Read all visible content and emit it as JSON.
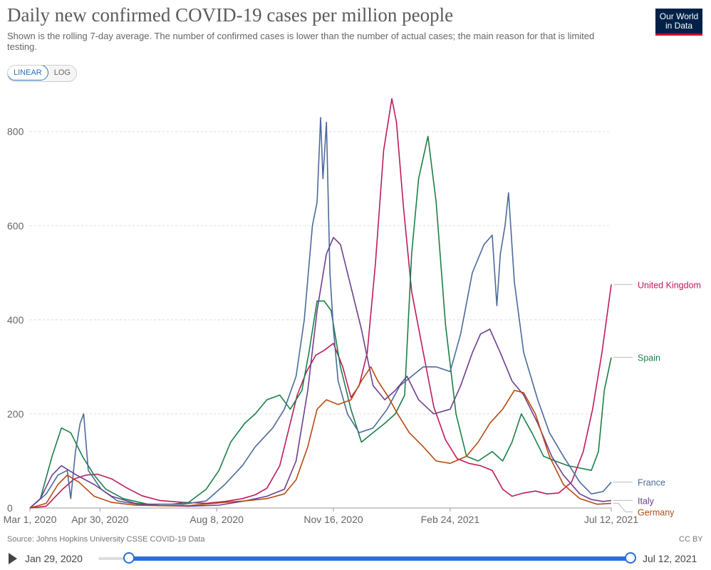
{
  "header": {
    "title": "Daily new confirmed COVID-19 cases per million people",
    "subtitle": "Shown is the rolling 7-day average. The number of confirmed cases is lower than the number of actual cases; the main reason for that is limited testing.",
    "logo_line1": "Our World",
    "logo_line2": "in Data"
  },
  "scale_toggle": {
    "linear": "LINEAR",
    "log": "LOG",
    "selected": "LINEAR"
  },
  "footer": {
    "source": "Source: Johns Hopkins University CSSE COVID-19 Data",
    "license": "CC BY"
  },
  "timeline": {
    "start_label": "Jan 29, 2020",
    "end_label": "Jul 12, 2021"
  },
  "chart_data": {
    "type": "line",
    "title": "Daily new confirmed COVID-19 cases per million people",
    "xlabel": "",
    "ylabel": "",
    "x_range": [
      "2020-03-01",
      "2021-07-12"
    ],
    "ylim": [
      0,
      880
    ],
    "y_ticks": [
      0,
      200,
      400,
      600,
      800
    ],
    "x_ticks": [
      {
        "date": "2020-03-01",
        "label": "Mar 1, 2020"
      },
      {
        "date": "2020-04-30",
        "label": "Apr 30, 2020"
      },
      {
        "date": "2020-08-08",
        "label": "Aug 8, 2020"
      },
      {
        "date": "2020-11-16",
        "label": "Nov 16, 2020"
      },
      {
        "date": "2021-02-24",
        "label": "Feb 24, 2021"
      },
      {
        "date": "2021-07-12",
        "label": "Jul 12, 2021"
      }
    ],
    "grid": true,
    "legend_position": "right (labels at line ends)",
    "series": [
      {
        "name": "United Kingdom",
        "color": "#be1a5c",
        "x": [
          "2020-03-01",
          "2020-03-15",
          "2020-03-29",
          "2020-04-08",
          "2020-04-18",
          "2020-04-28",
          "2020-05-10",
          "2020-05-22",
          "2020-06-05",
          "2020-06-20",
          "2020-07-10",
          "2020-07-30",
          "2020-08-15",
          "2020-08-30",
          "2020-09-10",
          "2020-09-20",
          "2020-10-01",
          "2020-10-08",
          "2020-10-16",
          "2020-10-24",
          "2020-11-01",
          "2020-11-08",
          "2020-11-16",
          "2020-11-24",
          "2020-12-01",
          "2020-12-08",
          "2020-12-15",
          "2020-12-22",
          "2020-12-29",
          "2021-01-05",
          "2021-01-09",
          "2021-01-15",
          "2021-01-22",
          "2021-02-01",
          "2021-02-10",
          "2021-02-20",
          "2021-03-02",
          "2021-03-12",
          "2021-03-22",
          "2021-04-01",
          "2021-04-10",
          "2021-04-18",
          "2021-04-28",
          "2021-05-08",
          "2021-05-18",
          "2021-05-28",
          "2021-06-08",
          "2021-06-18",
          "2021-06-26",
          "2021-07-04",
          "2021-07-12"
        ],
        "values": [
          0,
          4,
          40,
          62,
          70,
          72,
          62,
          44,
          26,
          16,
          12,
          10,
          14,
          20,
          28,
          42,
          90,
          160,
          240,
          290,
          325,
          335,
          350,
          300,
          235,
          260,
          330,
          520,
          760,
          870,
          820,
          640,
          460,
          330,
          215,
          145,
          105,
          95,
          90,
          80,
          40,
          25,
          32,
          36,
          30,
          32,
          55,
          120,
          210,
          330,
          475
        ]
      },
      {
        "name": "Spain",
        "color": "#1a8047",
        "x": [
          "2020-03-01",
          "2020-03-10",
          "2020-03-20",
          "2020-03-28",
          "2020-04-05",
          "2020-04-15",
          "2020-04-25",
          "2020-05-05",
          "2020-05-20",
          "2020-06-10",
          "2020-06-30",
          "2020-07-15",
          "2020-07-30",
          "2020-08-10",
          "2020-08-20",
          "2020-09-01",
          "2020-09-10",
          "2020-09-20",
          "2020-10-01",
          "2020-10-10",
          "2020-10-20",
          "2020-10-26",
          "2020-11-02",
          "2020-11-08",
          "2020-11-14",
          "2020-11-22",
          "2020-12-01",
          "2020-12-10",
          "2020-12-20",
          "2020-12-30",
          "2021-01-08",
          "2021-01-16",
          "2021-01-22",
          "2021-01-28",
          "2021-02-05",
          "2021-02-12",
          "2021-02-20",
          "2021-03-01",
          "2021-03-10",
          "2021-03-20",
          "2021-04-01",
          "2021-04-10",
          "2021-04-18",
          "2021-04-26",
          "2021-05-05",
          "2021-05-15",
          "2021-05-25",
          "2021-06-05",
          "2021-06-15",
          "2021-06-25",
          "2021-07-01",
          "2021-07-06",
          "2021-07-12"
        ],
        "values": [
          0,
          20,
          110,
          170,
          160,
          110,
          70,
          40,
          20,
          8,
          8,
          12,
          40,
          80,
          140,
          180,
          200,
          230,
          240,
          210,
          250,
          330,
          440,
          440,
          420,
          300,
          210,
          140,
          160,
          180,
          200,
          240,
          540,
          700,
          790,
          650,
          390,
          200,
          110,
          100,
          120,
          100,
          140,
          200,
          160,
          110,
          100,
          90,
          85,
          80,
          120,
          250,
          320
        ]
      },
      {
        "name": "France",
        "color": "#4c6a9c",
        "x": [
          "2020-03-01",
          "2020-03-15",
          "2020-03-25",
          "2020-04-02",
          "2020-04-05",
          "2020-04-09",
          "2020-04-13",
          "2020-04-16",
          "2020-04-20",
          "2020-05-01",
          "2020-05-15",
          "2020-06-01",
          "2020-06-20",
          "2020-07-10",
          "2020-07-30",
          "2020-08-15",
          "2020-08-30",
          "2020-09-10",
          "2020-09-25",
          "2020-10-05",
          "2020-10-15",
          "2020-10-22",
          "2020-10-29",
          "2020-11-02",
          "2020-11-05",
          "2020-11-07",
          "2020-11-10",
          "2020-11-13",
          "2020-11-16",
          "2020-11-20",
          "2020-11-28",
          "2020-12-08",
          "2020-12-20",
          "2021-01-01",
          "2021-01-12",
          "2021-01-22",
          "2021-02-01",
          "2021-02-12",
          "2021-02-24",
          "2021-03-05",
          "2021-03-15",
          "2021-03-25",
          "2021-04-01",
          "2021-04-05",
          "2021-04-08",
          "2021-04-12",
          "2021-04-15",
          "2021-04-20",
          "2021-04-28",
          "2021-05-10",
          "2021-05-20",
          "2021-06-01",
          "2021-06-15",
          "2021-06-25",
          "2021-07-05",
          "2021-07-12"
        ],
        "values": [
          0,
          30,
          70,
          80,
          20,
          120,
          180,
          200,
          80,
          40,
          15,
          8,
          8,
          8,
          15,
          50,
          90,
          130,
          170,
          210,
          280,
          400,
          600,
          650,
          830,
          700,
          820,
          500,
          380,
          270,
          200,
          160,
          170,
          210,
          260,
          280,
          300,
          300,
          290,
          370,
          500,
          560,
          580,
          430,
          540,
          600,
          670,
          480,
          330,
          230,
          160,
          110,
          55,
          30,
          35,
          55
        ]
      },
      {
        "name": "Italy",
        "color": "#6d3e91",
        "x": [
          "2020-03-01",
          "2020-03-10",
          "2020-03-20",
          "2020-03-28",
          "2020-04-10",
          "2020-04-25",
          "2020-05-10",
          "2020-05-30",
          "2020-06-20",
          "2020-07-15",
          "2020-08-10",
          "2020-09-01",
          "2020-09-20",
          "2020-10-05",
          "2020-10-15",
          "2020-10-25",
          "2020-11-02",
          "2020-11-10",
          "2020-11-16",
          "2020-11-22",
          "2020-12-01",
          "2020-12-10",
          "2020-12-20",
          "2020-12-30",
          "2021-01-08",
          "2021-01-18",
          "2021-01-28",
          "2021-02-10",
          "2021-02-24",
          "2021-03-05",
          "2021-03-15",
          "2021-03-22",
          "2021-03-30",
          "2021-04-08",
          "2021-04-18",
          "2021-04-28",
          "2021-05-10",
          "2021-05-22",
          "2021-06-01",
          "2021-06-15",
          "2021-06-25",
          "2021-07-05",
          "2021-07-12"
        ],
        "values": [
          0,
          20,
          70,
          90,
          70,
          50,
          25,
          10,
          5,
          4,
          6,
          15,
          25,
          40,
          100,
          250,
          420,
          540,
          575,
          560,
          470,
          380,
          260,
          230,
          250,
          280,
          230,
          200,
          210,
          260,
          330,
          370,
          380,
          330,
          270,
          240,
          180,
          110,
          70,
          30,
          18,
          14,
          16
        ]
      },
      {
        "name": "Germany",
        "color": "#b74a0f",
        "x": [
          "2020-03-01",
          "2020-03-15",
          "2020-03-25",
          "2020-04-02",
          "2020-04-12",
          "2020-04-25",
          "2020-05-10",
          "2020-05-30",
          "2020-06-20",
          "2020-07-15",
          "2020-08-15",
          "2020-09-01",
          "2020-09-20",
          "2020-10-05",
          "2020-10-15",
          "2020-10-25",
          "2020-11-02",
          "2020-11-10",
          "2020-11-20",
          "2020-12-01",
          "2020-12-10",
          "2020-12-18",
          "2020-12-24",
          "2021-01-01",
          "2021-01-10",
          "2021-01-20",
          "2021-02-01",
          "2021-02-12",
          "2021-02-24",
          "2021-03-10",
          "2021-03-20",
          "2021-03-30",
          "2021-04-10",
          "2021-04-20",
          "2021-04-28",
          "2021-05-08",
          "2021-05-20",
          "2021-06-01",
          "2021-06-15",
          "2021-06-30",
          "2021-07-12"
        ],
        "values": [
          0,
          10,
          50,
          70,
          55,
          25,
          12,
          6,
          5,
          5,
          12,
          15,
          20,
          30,
          60,
          130,
          210,
          230,
          220,
          230,
          270,
          300,
          270,
          240,
          200,
          160,
          130,
          100,
          95,
          110,
          140,
          180,
          210,
          250,
          245,
          200,
          110,
          50,
          20,
          8,
          10
        ]
      }
    ]
  }
}
